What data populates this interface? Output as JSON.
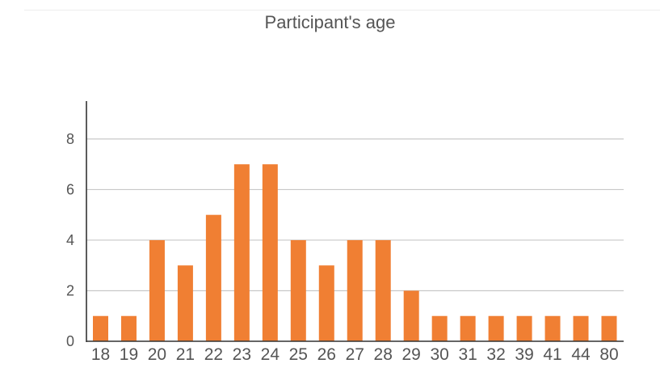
{
  "chart_data": {
    "type": "bar",
    "title": "Participant's age",
    "xlabel": "",
    "ylabel": "",
    "categories": [
      "18",
      "19",
      "20",
      "21",
      "22",
      "23",
      "24",
      "25",
      "26",
      "27",
      "28",
      "29",
      "30",
      "31",
      "32",
      "39",
      "41",
      "44",
      "80"
    ],
    "values": [
      1,
      1,
      4,
      3,
      5,
      7,
      7,
      4,
      3,
      4,
      4,
      2,
      1,
      1,
      1,
      1,
      1,
      1,
      1
    ],
    "ylim": [
      0,
      9.5
    ],
    "yticks": [
      "0",
      "2",
      "4",
      "6",
      "8"
    ],
    "grid": true,
    "legend": "none",
    "bar_color": "#f07f33",
    "grid_color": "#c8c8c8",
    "axis_color": "#333333"
  }
}
